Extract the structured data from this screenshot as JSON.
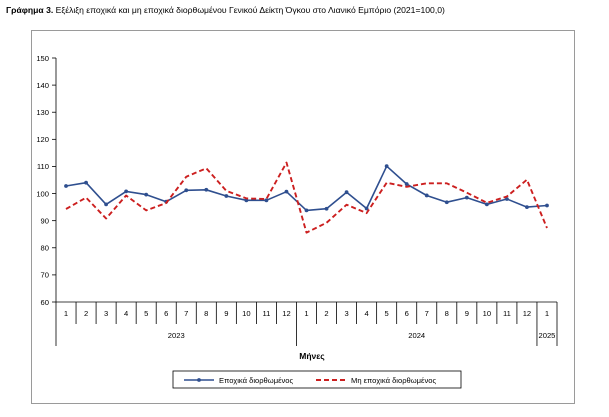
{
  "caption": {
    "prefix": "Γράφημα 3.",
    "text": "Εξέλιξη εποχικά και μη εποχικά διορθωμένου Γενικού Δείκτη Όγκου στο Λιανικό Εμπόριο (2021=100,0)"
  },
  "chart_data": {
    "type": "line",
    "xlabel": "Μήνες",
    "ylabel": "",
    "ylim": [
      60,
      150
    ],
    "yticks": [
      60,
      70,
      80,
      90,
      100,
      110,
      120,
      130,
      140,
      150
    ],
    "grid": false,
    "legend": "bottom",
    "categories": [
      "1",
      "2",
      "3",
      "4",
      "5",
      "6",
      "7",
      "8",
      "9",
      "10",
      "11",
      "12",
      "1",
      "2",
      "3",
      "4",
      "5",
      "6",
      "7",
      "8",
      "9",
      "10",
      "11",
      "12",
      "1"
    ],
    "year_groups": [
      {
        "label": "2023",
        "count": 12
      },
      {
        "label": "2024",
        "count": 12
      },
      {
        "label": "2025",
        "count": 1
      }
    ],
    "series": [
      {
        "name": "Εποχικά διορθωμένος",
        "color": "#2f4f8f",
        "style": "solid-marker",
        "values": [
          102.8,
          104,
          96,
          100.8,
          99.6,
          97,
          101.2,
          101.4,
          99.1,
          97.5,
          97.5,
          100.7,
          93.8,
          94.4,
          100.5,
          94.5,
          110.1,
          103.5,
          99.3,
          96.8,
          98.5,
          96,
          98,
          95,
          95.6
        ]
      },
      {
        "name": "Μη εποχικά διορθωμένος",
        "color": "#cc1f1f",
        "style": "dashed",
        "values": [
          94.3,
          98.5,
          90.8,
          99.3,
          93.8,
          96.5,
          106.2,
          109.3,
          101,
          98.2,
          98,
          111.4,
          85.6,
          89.2,
          95.9,
          92.8,
          104,
          102.5,
          103.8,
          103.8,
          100.3,
          96.6,
          98.9,
          105.1,
          87.3
        ]
      }
    ]
  }
}
